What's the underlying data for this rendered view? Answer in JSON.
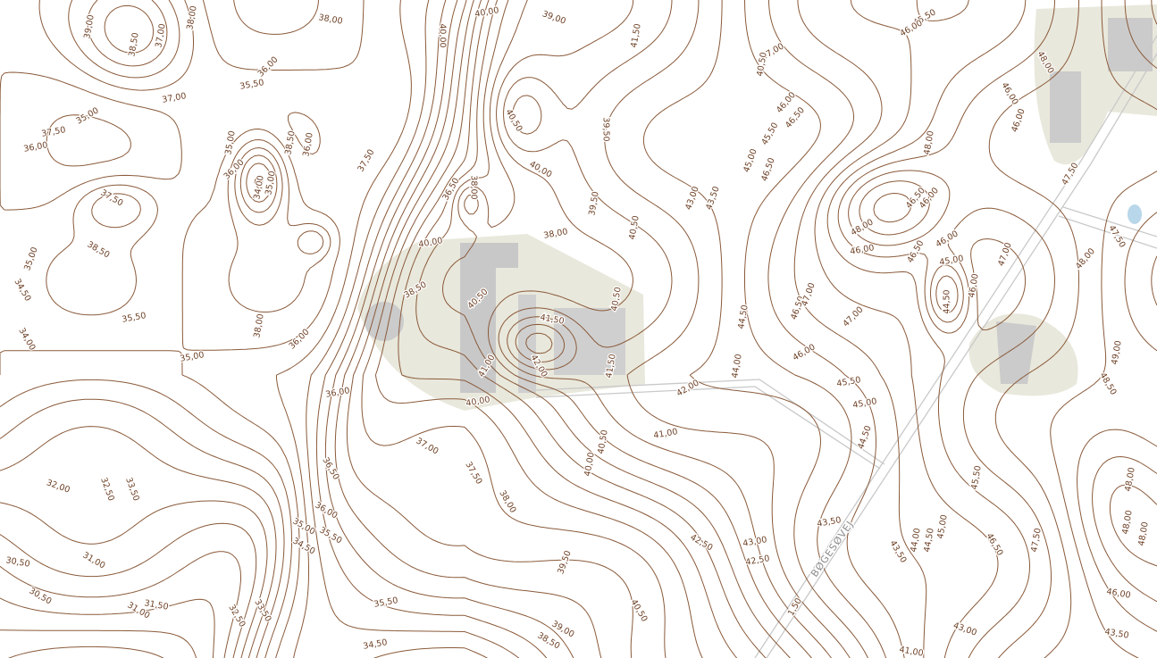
{
  "map": {
    "road_name": "BØGESØVEJ",
    "contour_labels": [
      "38,00",
      "40,00",
      "39,00",
      "40,00",
      "41,50",
      "47,00",
      "40,50",
      "45,50",
      "46,00",
      "39,00",
      "38,50",
      "37,00",
      "38,00",
      "35,50",
      "36,00",
      "37,00",
      "35,00",
      "37,50",
      "36,00",
      "35,00",
      "36,00",
      "34,00",
      "35,00",
      "38,50",
      "36,00",
      "37,50",
      "40,50",
      "40,00",
      "39,50",
      "36,50",
      "38,00",
      "39,50",
      "40,50",
      "38,00",
      "43,00",
      "43,50",
      "45,00",
      "45,50",
      "46,00",
      "46,50",
      "46,50",
      "48,00",
      "46,50",
      "46,00",
      "48,00",
      "46,00",
      "46,00",
      "46,50",
      "45,00",
      "44,50",
      "46,00",
      "47,00",
      "48,00",
      "37,50",
      "38,50",
      "35,00",
      "34,50",
      "35,50",
      "34,00",
      "35,00",
      "38,00",
      "36,00",
      "36,00",
      "40,00",
      "38,50",
      "40,50",
      "41,50",
      "42,00",
      "41,00",
      "40,00",
      "40,50",
      "41,50",
      "42,00",
      "44,00",
      "44,50",
      "46,50",
      "47,00",
      "47,00",
      "46,00",
      "45,50",
      "45,00",
      "44,50",
      "41,00",
      "40,50",
      "40,00",
      "37,00",
      "37,50",
      "38,00",
      "36,50",
      "36,00",
      "35,00",
      "35,50",
      "34,50",
      "33,50",
      "32,50",
      "32,00",
      "31,00",
      "30,50",
      "30,50",
      "31,50",
      "31,00",
      "32,50",
      "33,50",
      "35,50",
      "34,50",
      "39,50",
      "39,00",
      "38,50",
      "40,50",
      "42,50",
      "43,00",
      "42,50",
      "43,50",
      "43,50",
      "44,00",
      "44,50",
      "45,00",
      "45,50",
      "46,50",
      "47,50",
      "48,00",
      "48,00",
      "48,00",
      "46,00",
      "43,00",
      "43,50",
      "41,00",
      "1,50",
      "49,00",
      "48,50",
      "47,50",
      "47,50",
      "48,00",
      "46,00",
      "46,00"
    ]
  }
}
